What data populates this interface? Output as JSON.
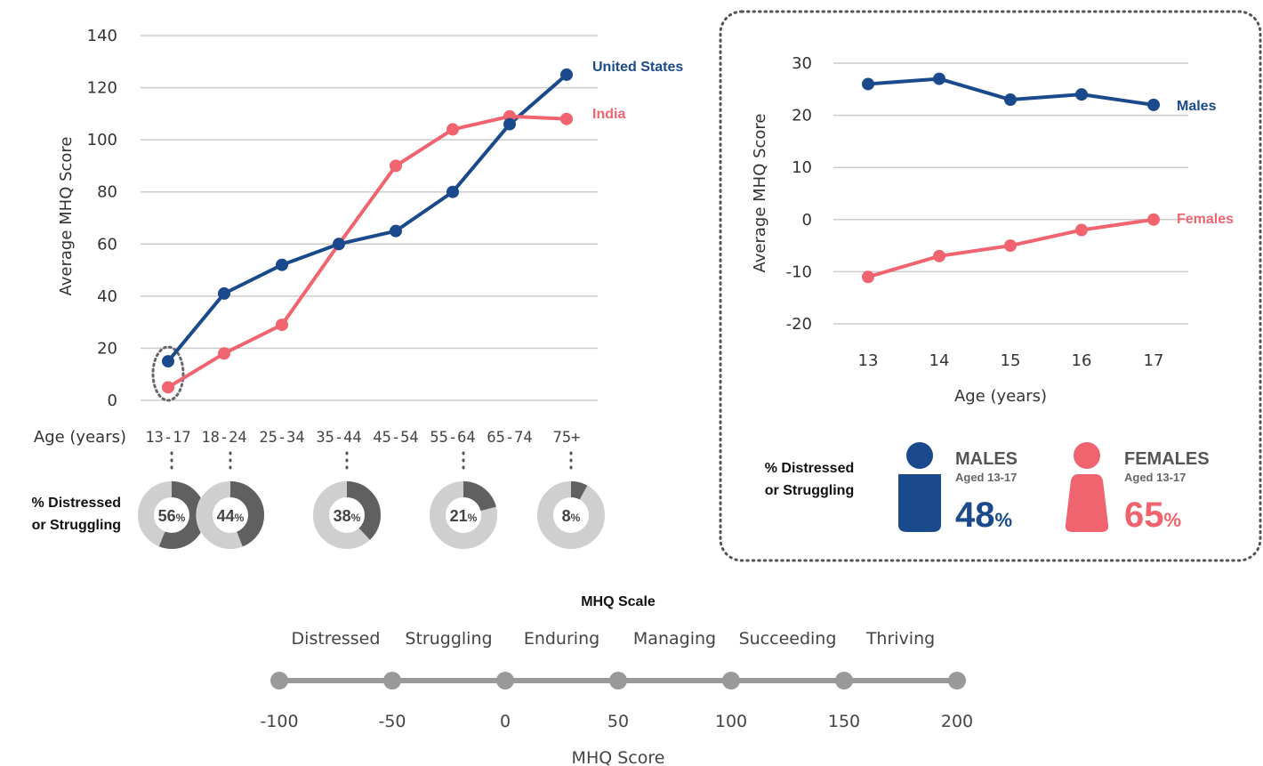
{
  "colors": {
    "us": "#1a4a8c",
    "india": "#f06470",
    "grid": "#cccccc",
    "donut_bg": "#cfcfcf",
    "donut_fg": "#606060",
    "scale": "#999999"
  },
  "chart_data": [
    {
      "type": "line",
      "ylabel": "Average MHQ Score",
      "xlabel": "Age (years)",
      "ylim": [
        0,
        140
      ],
      "yticks": [
        0,
        20,
        40,
        60,
        80,
        100,
        120,
        140
      ],
      "categories": [
        "13-17",
        "18-24",
        "25-34",
        "35-44",
        "45-54",
        "55-64",
        "65-74",
        "75+"
      ],
      "grid": true,
      "legend": "inline at line ends",
      "series": [
        {
          "name": "United States",
          "values": [
            15,
            41,
            52,
            60,
            65,
            80,
            106,
            125
          ]
        },
        {
          "name": "India",
          "values": [
            5,
            18,
            29,
            60,
            90,
            104,
            109,
            108
          ]
        }
      ],
      "annotation": {
        "label_line1": "% Distressed",
        "label_line2": "or Struggling",
        "donuts": [
          {
            "category": "13-17",
            "value": 56,
            "text": "56",
            "unit": "%"
          },
          {
            "category": "18-24",
            "value": 44,
            "text": "44",
            "unit": "%"
          },
          {
            "category": "35-44",
            "value": 38,
            "text": "38",
            "unit": "%"
          },
          {
            "category": "55-64",
            "value": 21,
            "text": "21",
            "unit": "%"
          },
          {
            "category": "75+",
            "value": 8,
            "text": "8",
            "unit": "%"
          }
        ]
      }
    },
    {
      "type": "line",
      "ylabel": "Average MHQ Score",
      "xlabel": "Age (years)",
      "ylim": [
        -20,
        30
      ],
      "yticks": [
        -20,
        -10,
        0,
        10,
        20,
        30
      ],
      "categories": [
        "13",
        "14",
        "15",
        "16",
        "17"
      ],
      "grid": true,
      "legend": "inline at line ends",
      "series": [
        {
          "name": "Males",
          "values": [
            26,
            27,
            23,
            24,
            22
          ]
        },
        {
          "name": "Females",
          "values": [
            -11,
            -7,
            -5,
            -2,
            0
          ]
        }
      ],
      "annotation": {
        "label_line1": "% Distressed",
        "label_line2": "or Struggling",
        "groups": [
          {
            "title": "MALES",
            "subtitle": "Aged 13-17",
            "value": 48,
            "text": "48",
            "unit": "%"
          },
          {
            "title": "FEMALES",
            "subtitle": "Aged 13-17",
            "value": 65,
            "text": "65",
            "unit": "%"
          }
        ]
      }
    },
    {
      "type": "scale",
      "title": "MHQ Scale",
      "xlabel": "MHQ Score",
      "ticks": [
        -100,
        -50,
        0,
        50,
        100,
        150,
        200
      ],
      "tick_labels": [
        "-100",
        "-50",
        "0",
        "50",
        "100",
        "150",
        "200"
      ],
      "bands": [
        "Distressed",
        "Struggling",
        "Enduring",
        "Managing",
        "Succeeding",
        "Thriving"
      ]
    }
  ]
}
